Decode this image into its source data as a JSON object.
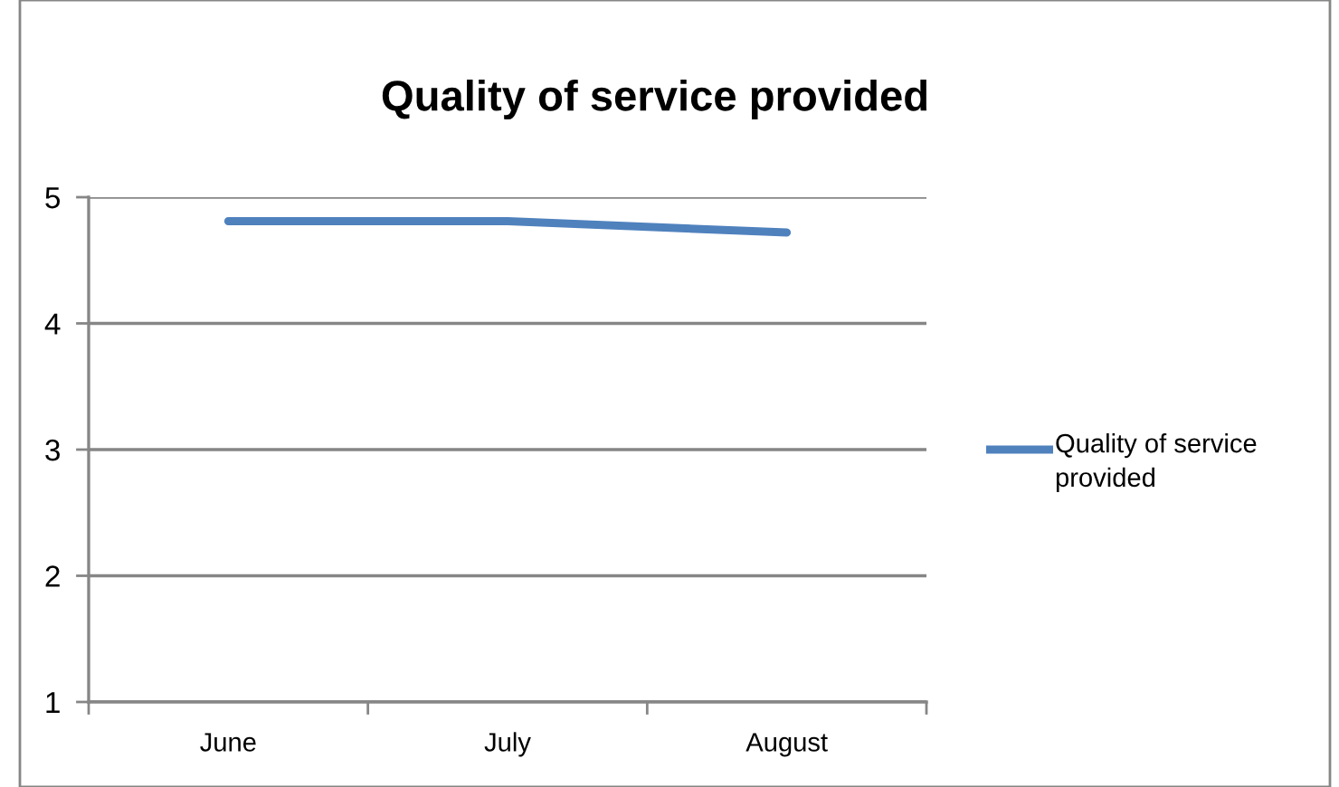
{
  "chart_data": {
    "type": "line",
    "title": "Quality of service provided",
    "categories": [
      "June",
      "July",
      "August"
    ],
    "series": [
      {
        "name": "Quality of service provided",
        "color": "#4f81bd",
        "values": [
          4.81,
          4.81,
          4.72
        ]
      }
    ],
    "ylim": [
      1,
      5
    ],
    "yticks": [
      1,
      2,
      3,
      4,
      5
    ],
    "grid": "y",
    "legend": "right",
    "marker": "none",
    "line_style": "solid"
  }
}
